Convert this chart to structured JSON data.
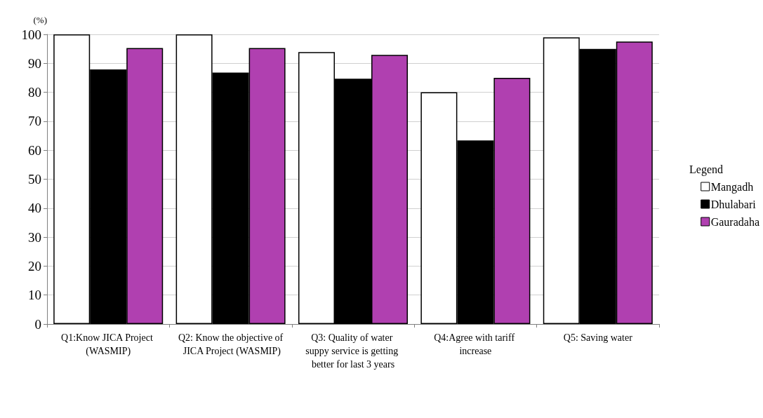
{
  "chart_data": {
    "type": "bar",
    "ylabel": "(%)",
    "legend_title": "Legend",
    "categories": [
      "Q1:Know JICA Project (WASMIP)",
      "Q2: Know the objective of JICA Project (WASMIP)",
      "Q3: Quality of water suppy service is getting better for last 3 years",
      "Q4:Agree with tariff increase",
      "Q5: Saving water"
    ],
    "series": [
      {
        "name": "Mangadh",
        "color": "#ffffff",
        "values": [
          100,
          100,
          93.9,
          80,
          99
        ]
      },
      {
        "name": "Dhulabari",
        "color": "#000000",
        "values": [
          87.9,
          86.8,
          84.7,
          63.4,
          95
        ]
      },
      {
        "name": "Gauradaha",
        "color": "#b040b0",
        "values": [
          95.3,
          95.3,
          92.9,
          85,
          97.5
        ]
      }
    ],
    "ylim": [
      0,
      100
    ],
    "yticks": [
      0,
      10,
      20,
      30,
      40,
      50,
      60,
      70,
      80,
      90,
      100
    ],
    "grid": "y",
    "legend": "right"
  }
}
